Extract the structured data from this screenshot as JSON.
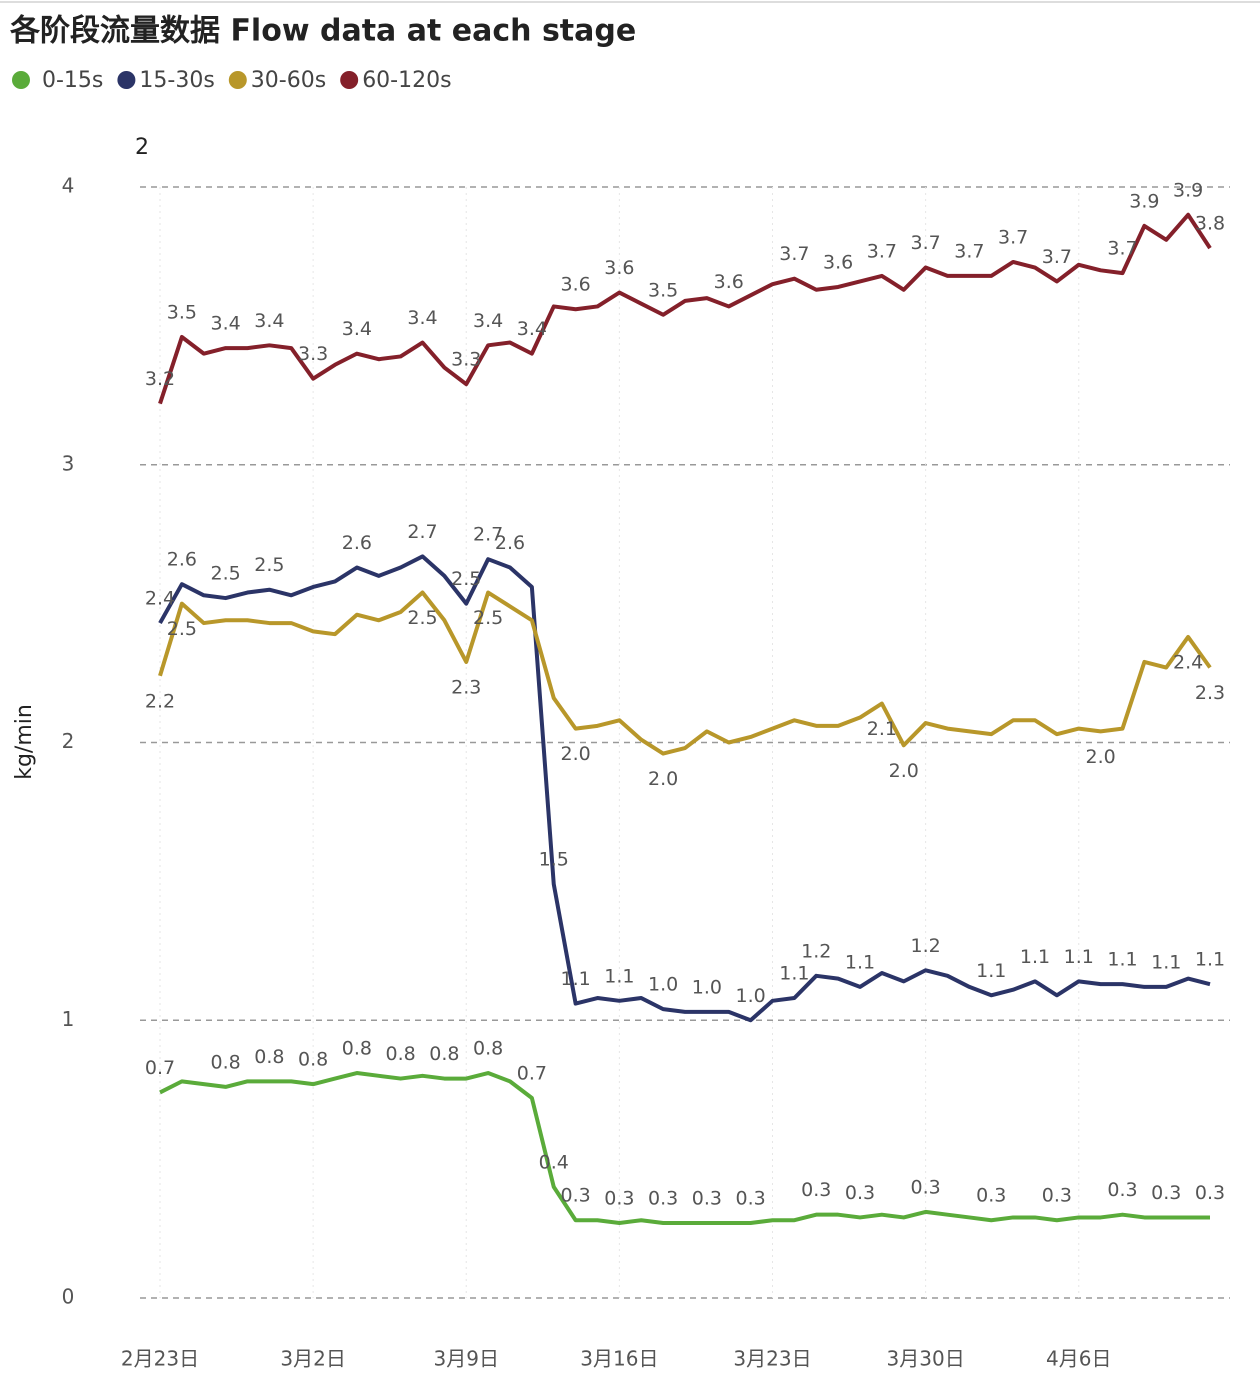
{
  "chart_data": {
    "type": "line",
    "title": "各阶段流量数据 Flow data at each stage",
    "annotation": "2",
    "y_label": "kg/min",
    "ylim": [
      0,
      4
    ],
    "yticks": [
      0,
      1,
      2,
      3,
      4
    ],
    "grid": true,
    "legend": "top-left",
    "categories": [
      "2月23日",
      null,
      null,
      null,
      null,
      null,
      null,
      "3月2日",
      null,
      null,
      null,
      null,
      null,
      null,
      "3月9日",
      null,
      null,
      null,
      null,
      null,
      null,
      "3月16日",
      null,
      null,
      null,
      null,
      null,
      null,
      "3月23日",
      null,
      null,
      null,
      null,
      null,
      null,
      "3月30日",
      null,
      null,
      null,
      null,
      null,
      null,
      "4月6日",
      null,
      null,
      null,
      null,
      null,
      null
    ],
    "series": [
      {
        "name": "0-15s",
        "color": "#5aab3a",
        "values": [
          0.74,
          0.78,
          0.77,
          0.76,
          0.78,
          0.78,
          0.78,
          0.77,
          0.79,
          0.81,
          0.8,
          0.79,
          0.8,
          0.79,
          0.79,
          0.81,
          0.78,
          0.72,
          0.4,
          0.28,
          0.28,
          0.27,
          0.28,
          0.27,
          0.27,
          0.27,
          0.27,
          0.27,
          0.28,
          0.28,
          0.3,
          0.3,
          0.29,
          0.3,
          0.29,
          0.31,
          0.3,
          0.29,
          0.28,
          0.29,
          0.29,
          0.28,
          0.29,
          0.29,
          0.3,
          0.29,
          0.29,
          0.29,
          0.29
        ],
        "value_labels": [
          "0.7",
          null,
          null,
          "0.8",
          null,
          "0.8",
          null,
          "0.8",
          null,
          "0.8",
          null,
          "0.8",
          null,
          "0.8",
          null,
          "0.8",
          null,
          "0.7",
          "0.4",
          "0.3",
          null,
          "0.3",
          null,
          "0.3",
          null,
          "0.3",
          null,
          "0.3",
          null,
          null,
          "0.3",
          null,
          "0.3",
          null,
          null,
          "0.3",
          null,
          null,
          "0.3",
          null,
          null,
          "0.3",
          null,
          null,
          "0.3",
          null,
          "0.3",
          null,
          "0.3"
        ]
      },
      {
        "name": "15-30s",
        "color": "#2b3467",
        "values": [
          2.43,
          2.57,
          2.53,
          2.52,
          2.54,
          2.55,
          2.53,
          2.56,
          2.58,
          2.63,
          2.6,
          2.63,
          2.67,
          2.6,
          2.5,
          2.66,
          2.63,
          2.56,
          1.49,
          1.06,
          1.08,
          1.07,
          1.08,
          1.04,
          1.03,
          1.03,
          1.03,
          1.0,
          1.07,
          1.08,
          1.16,
          1.15,
          1.12,
          1.17,
          1.14,
          1.18,
          1.16,
          1.12,
          1.09,
          1.11,
          1.14,
          1.09,
          1.14,
          1.13,
          1.13,
          1.12,
          1.12,
          1.15,
          1.13
        ],
        "value_labels": [
          "2.4",
          "2.6",
          null,
          "2.5",
          null,
          "2.5",
          null,
          null,
          null,
          "2.6",
          null,
          null,
          "2.7",
          null,
          "2.5",
          "2.7",
          "2.6",
          null,
          "1.5",
          "1.1",
          null,
          "1.1",
          null,
          "1.0",
          null,
          "1.0",
          null,
          "1.0",
          null,
          "1.1",
          "1.2",
          null,
          "1.1",
          null,
          null,
          "1.2",
          null,
          null,
          "1.1",
          null,
          "1.1",
          null,
          "1.1",
          null,
          "1.1",
          null,
          "1.1",
          null,
          "1.1"
        ]
      },
      {
        "name": "30-60s",
        "color": "#b8972a",
        "values": [
          2.24,
          2.5,
          2.43,
          2.44,
          2.44,
          2.43,
          2.43,
          2.4,
          2.39,
          2.46,
          2.44,
          2.47,
          2.54,
          2.44,
          2.29,
          2.54,
          2.49,
          2.44,
          2.16,
          2.05,
          2.06,
          2.08,
          2.01,
          1.96,
          1.98,
          2.04,
          2.0,
          2.02,
          2.05,
          2.08,
          2.06,
          2.06,
          2.09,
          2.14,
          1.99,
          2.07,
          2.05,
          2.04,
          2.03,
          2.08,
          2.08,
          2.03,
          2.05,
          2.04,
          2.05,
          2.29,
          2.27,
          2.38,
          2.27
        ],
        "value_labels": [
          "2.2",
          "2.5",
          null,
          null,
          null,
          null,
          null,
          null,
          null,
          null,
          null,
          null,
          "2.5",
          null,
          "2.3",
          "2.5",
          null,
          null,
          null,
          "2.0",
          null,
          null,
          null,
          "2.0",
          null,
          null,
          null,
          null,
          null,
          null,
          null,
          null,
          null,
          "2.1",
          "2.0",
          null,
          null,
          null,
          null,
          null,
          null,
          null,
          null,
          "2.0",
          null,
          null,
          null,
          "2.4",
          "2.3"
        ]
      },
      {
        "name": "60-120s",
        "color": "#84202a",
        "values": [
          3.22,
          3.46,
          3.4,
          3.42,
          3.42,
          3.43,
          3.42,
          3.31,
          3.36,
          3.4,
          3.38,
          3.39,
          3.44,
          3.35,
          3.29,
          3.43,
          3.44,
          3.4,
          3.57,
          3.56,
          3.57,
          3.62,
          3.58,
          3.54,
          3.59,
          3.6,
          3.57,
          3.61,
          3.65,
          3.67,
          3.63,
          3.64,
          3.66,
          3.68,
          3.63,
          3.71,
          3.68,
          3.68,
          3.68,
          3.73,
          3.71,
          3.66,
          3.72,
          3.7,
          3.69,
          3.86,
          3.81,
          3.9,
          3.78
        ],
        "value_labels": [
          "3.2",
          "3.5",
          null,
          "3.4",
          null,
          "3.4",
          null,
          "3.3",
          null,
          "3.4",
          null,
          null,
          "3.4",
          null,
          "3.3",
          "3.4",
          null,
          "3.4",
          null,
          "3.6",
          null,
          "3.6",
          null,
          "3.5",
          null,
          null,
          "3.6",
          null,
          null,
          "3.7",
          null,
          "3.6",
          null,
          "3.7",
          null,
          "3.7",
          null,
          "3.7",
          null,
          "3.7",
          null,
          "3.7",
          null,
          null,
          "3.7",
          "3.9",
          null,
          "3.9",
          "3.8"
        ]
      }
    ]
  }
}
